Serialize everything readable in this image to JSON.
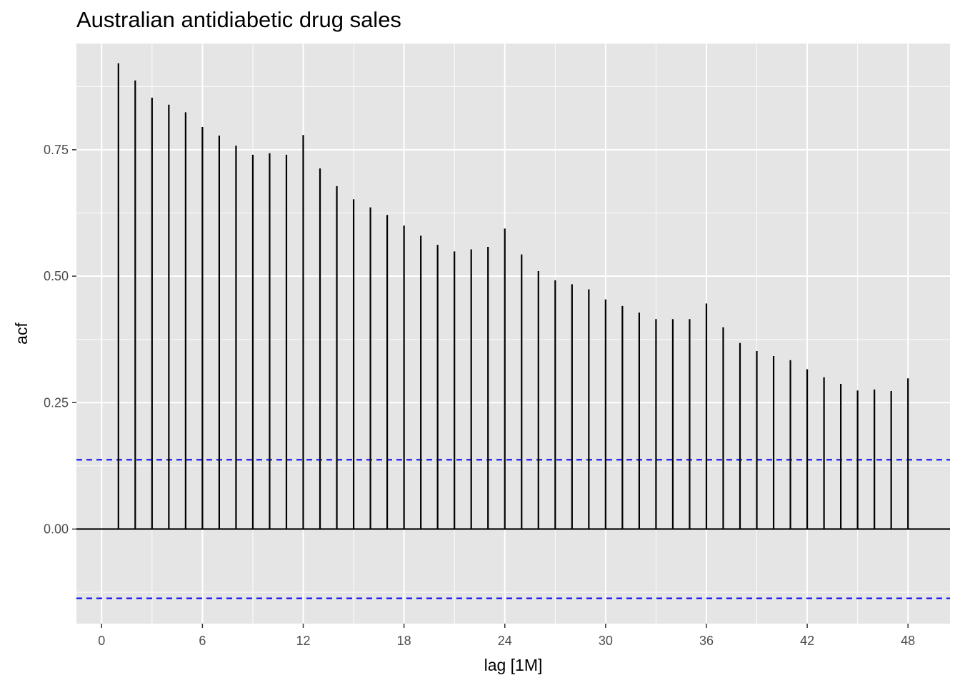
{
  "chart_data": {
    "type": "bar",
    "title": "Australian antidiabetic drug sales",
    "xlabel": "lag [1M]",
    "ylabel": "acf",
    "xlim": [
      -1.5,
      50.5
    ],
    "ylim": [
      -0.187,
      0.96
    ],
    "x_ticks": [
      0,
      6,
      12,
      18,
      24,
      30,
      36,
      42,
      48
    ],
    "x_tick_labels": [
      "0",
      "6",
      "12",
      "18",
      "24",
      "30",
      "36",
      "42",
      "48"
    ],
    "y_ticks": [
      0,
      0.25,
      0.5,
      0.75
    ],
    "y_tick_labels": [
      "0.00",
      "0.25",
      "0.50",
      "0.75"
    ],
    "grid": true,
    "lags": [
      1,
      2,
      3,
      4,
      5,
      6,
      7,
      8,
      9,
      10,
      11,
      12,
      13,
      14,
      15,
      16,
      17,
      18,
      19,
      20,
      21,
      22,
      23,
      24,
      25,
      26,
      27,
      28,
      29,
      30,
      31,
      32,
      33,
      34,
      35,
      36,
      37,
      38,
      39,
      40,
      41,
      42,
      43,
      44,
      45,
      46,
      47,
      48
    ],
    "acf": [
      0.921,
      0.887,
      0.853,
      0.839,
      0.824,
      0.795,
      0.778,
      0.758,
      0.74,
      0.743,
      0.74,
      0.779,
      0.713,
      0.678,
      0.652,
      0.636,
      0.621,
      0.6,
      0.58,
      0.562,
      0.549,
      0.553,
      0.558,
      0.594,
      0.543,
      0.51,
      0.492,
      0.484,
      0.474,
      0.454,
      0.441,
      0.428,
      0.415,
      0.415,
      0.415,
      0.446,
      0.399,
      0.368,
      0.352,
      0.342,
      0.334,
      0.316,
      0.3,
      0.287,
      0.274,
      0.276,
      0.273,
      0.298
    ],
    "confidence_bound": 0.137,
    "colors": {
      "panel_background": "#e5e5e5",
      "grid_major": "#ffffff",
      "bars": "#000000",
      "confidence_lines": "#0000ff",
      "tick_text": "#4d4d4d",
      "axis_title": "#000000"
    }
  }
}
